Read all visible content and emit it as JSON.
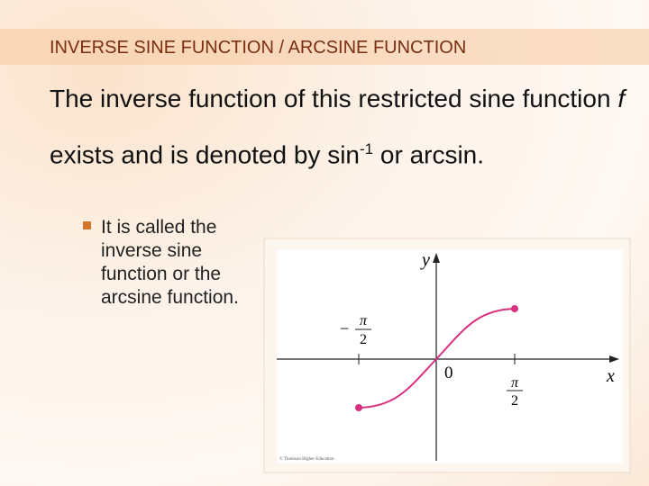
{
  "header": {
    "title": "INVERSE SINE FUNCTION / ARCSINE FUNCTION"
  },
  "body": {
    "paragraph": [
      "The inverse function of this restricted sine function ",
      "f",
      " exists and is denoted by sin",
      "-1",
      " or arcsin."
    ],
    "bullet": "It is called the inverse sine function or the arcsine function."
  },
  "figure": {
    "y_label": "y",
    "x_label": "x",
    "origin_label": "0",
    "minus": "−",
    "numerator": "π",
    "denominator": "2",
    "credit": "© Thomson Higher Education"
  }
}
